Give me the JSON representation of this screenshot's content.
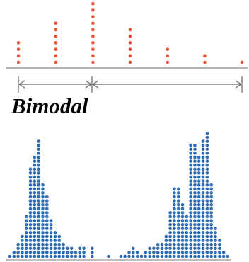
{
  "chart_data": [
    {
      "type": "dot",
      "annotation": "Bimodal",
      "color": "#e8533a",
      "values": [
        4,
        7,
        10,
        6,
        3,
        2,
        1
      ]
    },
    {
      "type": "dot",
      "color": "#2f6db5",
      "values": [
        1,
        2,
        4,
        6,
        11,
        23,
        26,
        30,
        19,
        16,
        10,
        7,
        6,
        4,
        3,
        3,
        2,
        3,
        3,
        0,
        3,
        0,
        0,
        0,
        1,
        0,
        0,
        1,
        1,
        2,
        3,
        2,
        1,
        2,
        3,
        3,
        4,
        4,
        6,
        12,
        18,
        18,
        14,
        11,
        29,
        29,
        26,
        30,
        32,
        19,
        8,
        5,
        2,
        1
      ]
    }
  ]
}
